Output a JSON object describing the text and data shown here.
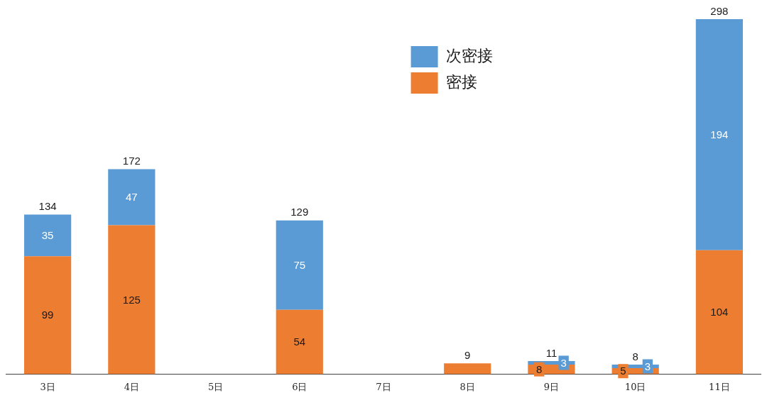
{
  "chart_data": {
    "type": "bar",
    "stacked": true,
    "categories": [
      "3日",
      "4日",
      "5日",
      "6日",
      "7日",
      "8日",
      "9日",
      "10日",
      "11日"
    ],
    "series": [
      {
        "name": "密接",
        "color": "#ed7d31",
        "values": [
          99,
          125,
          0,
          54,
          0,
          9,
          8,
          5,
          104
        ],
        "value_labels": [
          "99",
          "125",
          null,
          "54",
          null,
          null,
          "8",
          "5",
          "104"
        ]
      },
      {
        "name": "次密接",
        "color": "#5b9bd5",
        "values": [
          35,
          47,
          0,
          75,
          0,
          0,
          3,
          3,
          194
        ],
        "value_labels": [
          "35",
          "47",
          null,
          "75",
          null,
          null,
          "3",
          "3",
          "194"
        ]
      }
    ],
    "totals": [
      "134",
      "172",
      null,
      "129",
      null,
      "9",
      "11",
      "8",
      "298"
    ],
    "legend": "top",
    "tick_labels": "x"
  }
}
